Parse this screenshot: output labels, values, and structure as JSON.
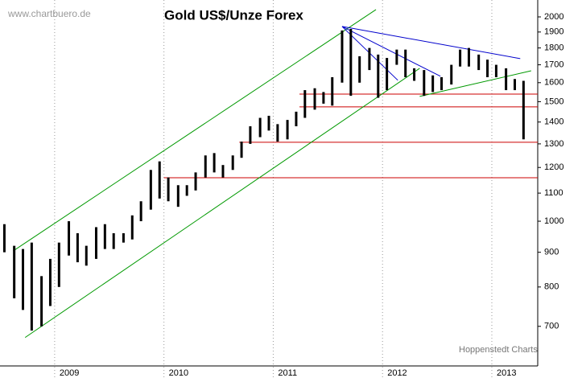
{
  "chart_data": {
    "type": "hilo",
    "title": "Gold US$/Unze Forex",
    "source": "www.chartbuero.de",
    "credit": "Hoppenstedt Charts",
    "x": [
      2008.54,
      2008.63,
      2008.71,
      2008.79,
      2008.88,
      2008.96,
      2009.04,
      2009.13,
      2009.21,
      2009.29,
      2009.38,
      2009.46,
      2009.54,
      2009.63,
      2009.71,
      2009.79,
      2009.88,
      2009.96,
      2010.04,
      2010.13,
      2010.21,
      2010.29,
      2010.38,
      2010.46,
      2010.54,
      2010.63,
      2010.71,
      2010.79,
      2010.88,
      2010.96,
      2011.04,
      2011.13,
      2011.21,
      2011.29,
      2011.38,
      2011.46,
      2011.54,
      2011.63,
      2011.71,
      2011.79,
      2011.88,
      2011.96,
      2012.04,
      2012.13,
      2012.21,
      2012.29,
      2012.38,
      2012.46,
      2012.54,
      2012.63,
      2012.71,
      2012.79,
      2012.88,
      2012.96,
      2013.04,
      2013.13,
      2013.21,
      2013.29
    ],
    "high": [
      990,
      920,
      910,
      930,
      830,
      880,
      930,
      1000,
      960,
      920,
      980,
      990,
      960,
      960,
      1020,
      1070,
      1190,
      1225,
      1160,
      1130,
      1130,
      1180,
      1250,
      1260,
      1210,
      1250,
      1310,
      1380,
      1420,
      1430,
      1390,
      1410,
      1450,
      1560,
      1570,
      1550,
      1630,
      1910,
      1920,
      1750,
      1800,
      1760,
      1740,
      1790,
      1790,
      1680,
      1670,
      1640,
      1630,
      1700,
      1790,
      1800,
      1760,
      1730,
      1700,
      1680,
      1620,
      1610
    ],
    "low": [
      900,
      770,
      740,
      690,
      700,
      750,
      800,
      890,
      870,
      860,
      880,
      910,
      910,
      930,
      940,
      1000,
      1040,
      1080,
      1070,
      1050,
      1090,
      1110,
      1160,
      1180,
      1160,
      1190,
      1240,
      1300,
      1330,
      1360,
      1310,
      1320,
      1380,
      1420,
      1460,
      1490,
      1480,
      1600,
      1530,
      1600,
      1670,
      1520,
      1560,
      1700,
      1630,
      1610,
      1530,
      1550,
      1560,
      1590,
      1690,
      1690,
      1670,
      1630,
      1630,
      1560,
      1560,
      1320
    ],
    "bar_color": "#000000",
    "xlim": [
      2008.5,
      2013.42
    ],
    "xticks": [
      2009,
      2010,
      2011,
      2012,
      2013
    ],
    "ylim": [
      612,
      2118
    ],
    "log_scale": true,
    "yticks": [
      700,
      800,
      900,
      1000,
      1100,
      1200,
      1300,
      1400,
      1500,
      1600,
      1700,
      1800,
      1900,
      2000
    ],
    "hline_color": "#cc0000",
    "hlines": [
      {
        "y": 1539,
        "x0": 2011.24
      },
      {
        "y": 1474,
        "x0": 2011.24
      },
      {
        "y": 1307,
        "x0": 2010.69
      },
      {
        "y": 1159,
        "x0": 2010.0
      }
    ],
    "trendlines": [
      {
        "color": "#009900",
        "points": [
          [
            2008.62,
            904
          ],
          [
            2011.94,
            2050
          ]
        ]
      },
      {
        "color": "#009900",
        "points": [
          [
            2008.73,
            674
          ],
          [
            2012.34,
            1680
          ]
        ]
      },
      {
        "color": "#009900",
        "points": [
          [
            2012.34,
            1527
          ],
          [
            2013.36,
            1666
          ]
        ]
      },
      {
        "color": "#0000cc",
        "points": [
          [
            2011.63,
            1936
          ],
          [
            2013.26,
            1736
          ]
        ]
      },
      {
        "color": "#0000cc",
        "points": [
          [
            2011.63,
            1936
          ],
          [
            2012.53,
            1635
          ]
        ]
      },
      {
        "color": "#0000cc",
        "points": [
          [
            2011.63,
            1936
          ],
          [
            2012.14,
            1613
          ]
        ]
      }
    ]
  }
}
